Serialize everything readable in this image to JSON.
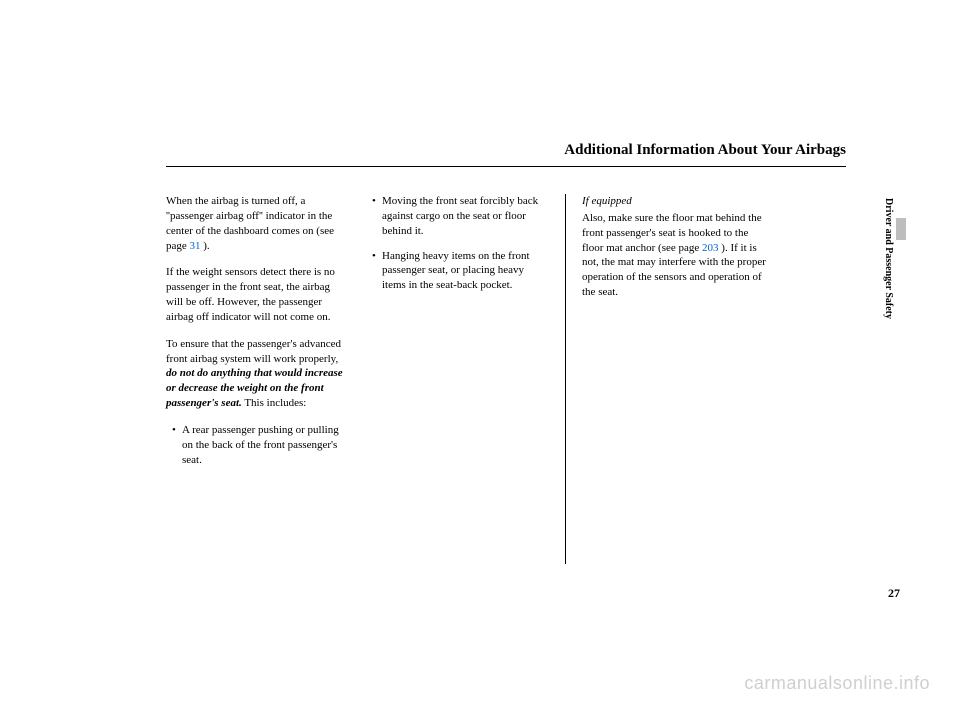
{
  "header": {
    "title": "Additional Information About Your Airbags"
  },
  "col1": {
    "p1a": "When the airbag is turned off, a ''passenger airbag off'' indicator in the center of the dashboard comes on (see page ",
    "p1link": "31",
    "p1b": " ).",
    "p2": "If the weight sensors detect there is no passenger in the front seat, the airbag will be off. However, the passenger airbag off indicator will not come on.",
    "p3a": "To ensure that the passenger's advanced front airbag system will work properly, ",
    "p3bold": "do not do anything that would increase or decrease the weight on the front passenger's seat.",
    "p3b": " This includes:",
    "b1": "A rear passenger pushing or pulling on the back of the front passenger's seat."
  },
  "col2": {
    "b1": "Moving the front seat forcibly back against cargo on the seat or floor behind it.",
    "b2": "Hanging heavy items on the front passenger seat, or placing heavy items in the seat-back pocket."
  },
  "col3": {
    "label": "If equipped",
    "p1a": "Also, make sure the floor mat behind the front passenger's seat is hooked to the floor mat anchor (see page ",
    "p1link": "203",
    "p1b": " ). If it is not, the mat may interfere with the proper operation of the sensors and operation of the seat."
  },
  "side": {
    "section": "Driver and Passenger Safety"
  },
  "pagenum": "27",
  "watermark": "carmanualsonline.info"
}
